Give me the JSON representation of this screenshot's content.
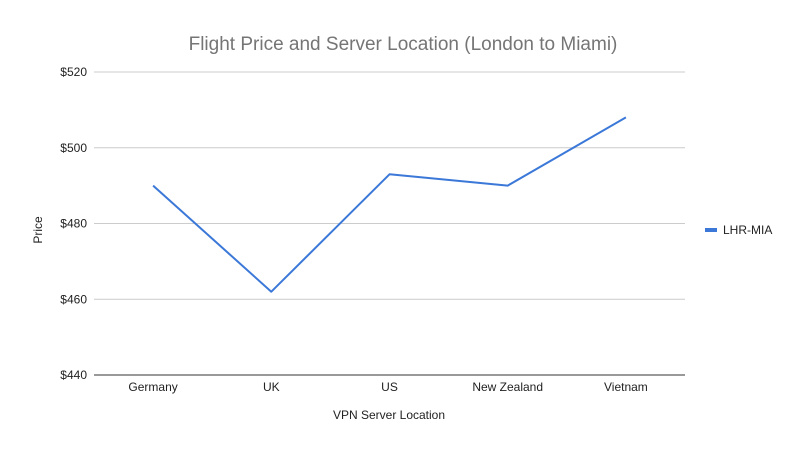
{
  "chart_data": {
    "type": "line",
    "title": "Flight Price and Server Location (London to Miami)",
    "xlabel": "VPN Server Location",
    "ylabel": "Price",
    "categories": [
      "Germany",
      "UK",
      "US",
      "New Zealand",
      "Vietnam"
    ],
    "series": [
      {
        "name": "LHR-MIA",
        "values": [
          490,
          462,
          493,
          490,
          508
        ],
        "color": "#3b78d8"
      }
    ],
    "ylim": [
      440,
      520
    ],
    "yticks": [
      {
        "value": 440,
        "label": "$440"
      },
      {
        "value": 460,
        "label": "$460"
      },
      {
        "value": 480,
        "label": "$480"
      },
      {
        "value": 500,
        "label": "$500"
      },
      {
        "value": 520,
        "label": "$520"
      }
    ],
    "grid": true,
    "legend_position": "right",
    "colors": {
      "title": "#757575",
      "gridline": "#cccccc",
      "axis_text": "#222222"
    }
  }
}
